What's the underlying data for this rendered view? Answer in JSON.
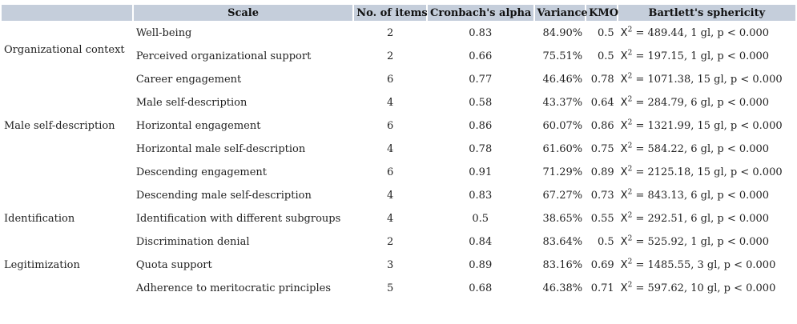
{
  "headers": [
    "",
    "Scale",
    "No. of items",
    "Cronbach's alpha",
    "Variance",
    "KMO",
    "Bartlett's sphericity"
  ],
  "rows": [
    {
      "group": "",
      "scale": "Well-being",
      "items": "2",
      "alpha": "0.83",
      "variance": "84.90%",
      "kmo": "0.5",
      "x": "X",
      "sup": "2",
      "bartlett": " = 489.44, 1 gl, p < 0.000"
    },
    {
      "group": "",
      "scale": "Perceived organizational support",
      "items": "2",
      "alpha": "0.66",
      "variance": "75.51%",
      "kmo": "0.5",
      "x": "X",
      "sup": "2",
      "bartlett": " = 197.15, 1 gl, p < 0.000"
    },
    {
      "group": "",
      "scale": "Career engagement",
      "items": "6",
      "alpha": "0.77",
      "variance": "46.46%",
      "kmo": "0.78",
      "x": "X",
      "sup": "2",
      "bartlett": " = 1071.38, 15 gl, p < 0.000"
    },
    {
      "group": "",
      "scale": "Male self-description",
      "items": "4",
      "alpha": "0.58",
      "variance": "43.37%",
      "kmo": "0.64",
      "x": "X",
      "sup": "2",
      "bartlett": " = 284.79, 6 gl, p < 0.000"
    },
    {
      "group": "",
      "scale": "Horizontal engagement",
      "items": "6",
      "alpha": "0.86",
      "variance": "60.07%",
      "kmo": "0.86",
      "x": "X",
      "sup": "2",
      "bartlett": " = 1321.99, 15 gl, p < 0.000"
    },
    {
      "group": "",
      "scale": "Horizontal male self-description",
      "items": "4",
      "alpha": "0.78",
      "variance": "61.60%",
      "kmo": "0.75",
      "x": "X",
      "sup": "2",
      "bartlett": " = 584.22, 6 gl, p < 0.000"
    },
    {
      "group": "",
      "scale": "Descending engagement",
      "items": "6",
      "alpha": "0.91",
      "variance": "71.29%",
      "kmo": "0.89",
      "x": "X",
      "sup": "2",
      "bartlett": " = 2125.18, 15 gl, p < 0.000"
    },
    {
      "group": "",
      "scale": "Descending male self-description",
      "items": "4",
      "alpha": "0.83",
      "variance": "67.27%",
      "kmo": "0.73",
      "x": "X",
      "sup": "2",
      "bartlett": " = 843.13, 6 gl, p < 0.000"
    },
    {
      "group": "Identification",
      "scale": "Identification with different subgroups",
      "items": "4",
      "alpha": "0.5",
      "variance": "38.65%",
      "kmo": "0.55",
      "x": "X",
      "sup": "2",
      "bartlett": " = 292.51, 6 gl, p < 0.000"
    },
    {
      "group": "",
      "scale": "Discrimination denial",
      "items": "2",
      "alpha": "0.84",
      "variance": "83.64%",
      "kmo": "0.5",
      "x": "X",
      "sup": "2",
      "bartlett": " = 525.92, 1 gl, p < 0.000"
    },
    {
      "group": "Legitimization",
      "scale": "Quota support",
      "items": "3",
      "alpha": "0.89",
      "variance": "83.16%",
      "kmo": "0.69",
      "x": "X",
      "sup": "2",
      "bartlett": " = 1485.55, 3 gl, p < 0.000"
    },
    {
      "group": "",
      "scale": "Adherence to meritocratic principles",
      "items": "5",
      "alpha": "0.68",
      "variance": "46.38%",
      "kmo": "0.71",
      "x": "X",
      "sup": "2",
      "bartlett": " = 597.62, 10 gl, p < 0.000"
    }
  ],
  "group_labels": {
    "organizational_context": "Organizational context",
    "male_self_description": "Male self-description"
  },
  "colors": {
    "header_bg": "#c5cedb"
  }
}
